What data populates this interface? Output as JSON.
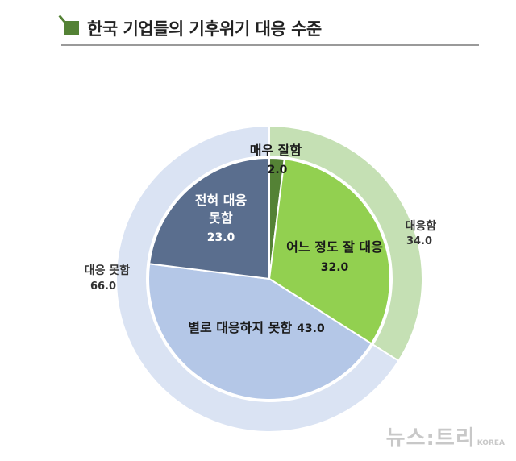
{
  "title": "한국 기업들의 기후위기 대응 수준",
  "watermark": "뉴스:트리",
  "watermark_sub": "KOREA",
  "chart_data": {
    "type": "pie",
    "title": "한국 기업들의 기후위기 대응 수준",
    "outer": {
      "slices": [
        {
          "label": "대응함",
          "value": 34.0,
          "value_text": "34.0",
          "color": "#c5e0b4"
        },
        {
          "label": "대응 못함",
          "value": 66.0,
          "value_text": "66.0",
          "color": "#dae3f3"
        }
      ]
    },
    "inner": {
      "slices": [
        {
          "label": "매우 잘함",
          "value": 2.0,
          "value_text": "2.0",
          "color": "#548235"
        },
        {
          "label": "어느 정도 잘 대응",
          "value": 32.0,
          "value_text": "32.0",
          "color": "#92d050"
        },
        {
          "label": "별로 대응하지 못함",
          "value": 43.0,
          "value_text": "43.0",
          "color": "#b4c7e7"
        },
        {
          "label": "전혀 대응 못함",
          "value": 23.0,
          "value_text": "23.0",
          "color": "#5a6e8e"
        }
      ]
    }
  }
}
